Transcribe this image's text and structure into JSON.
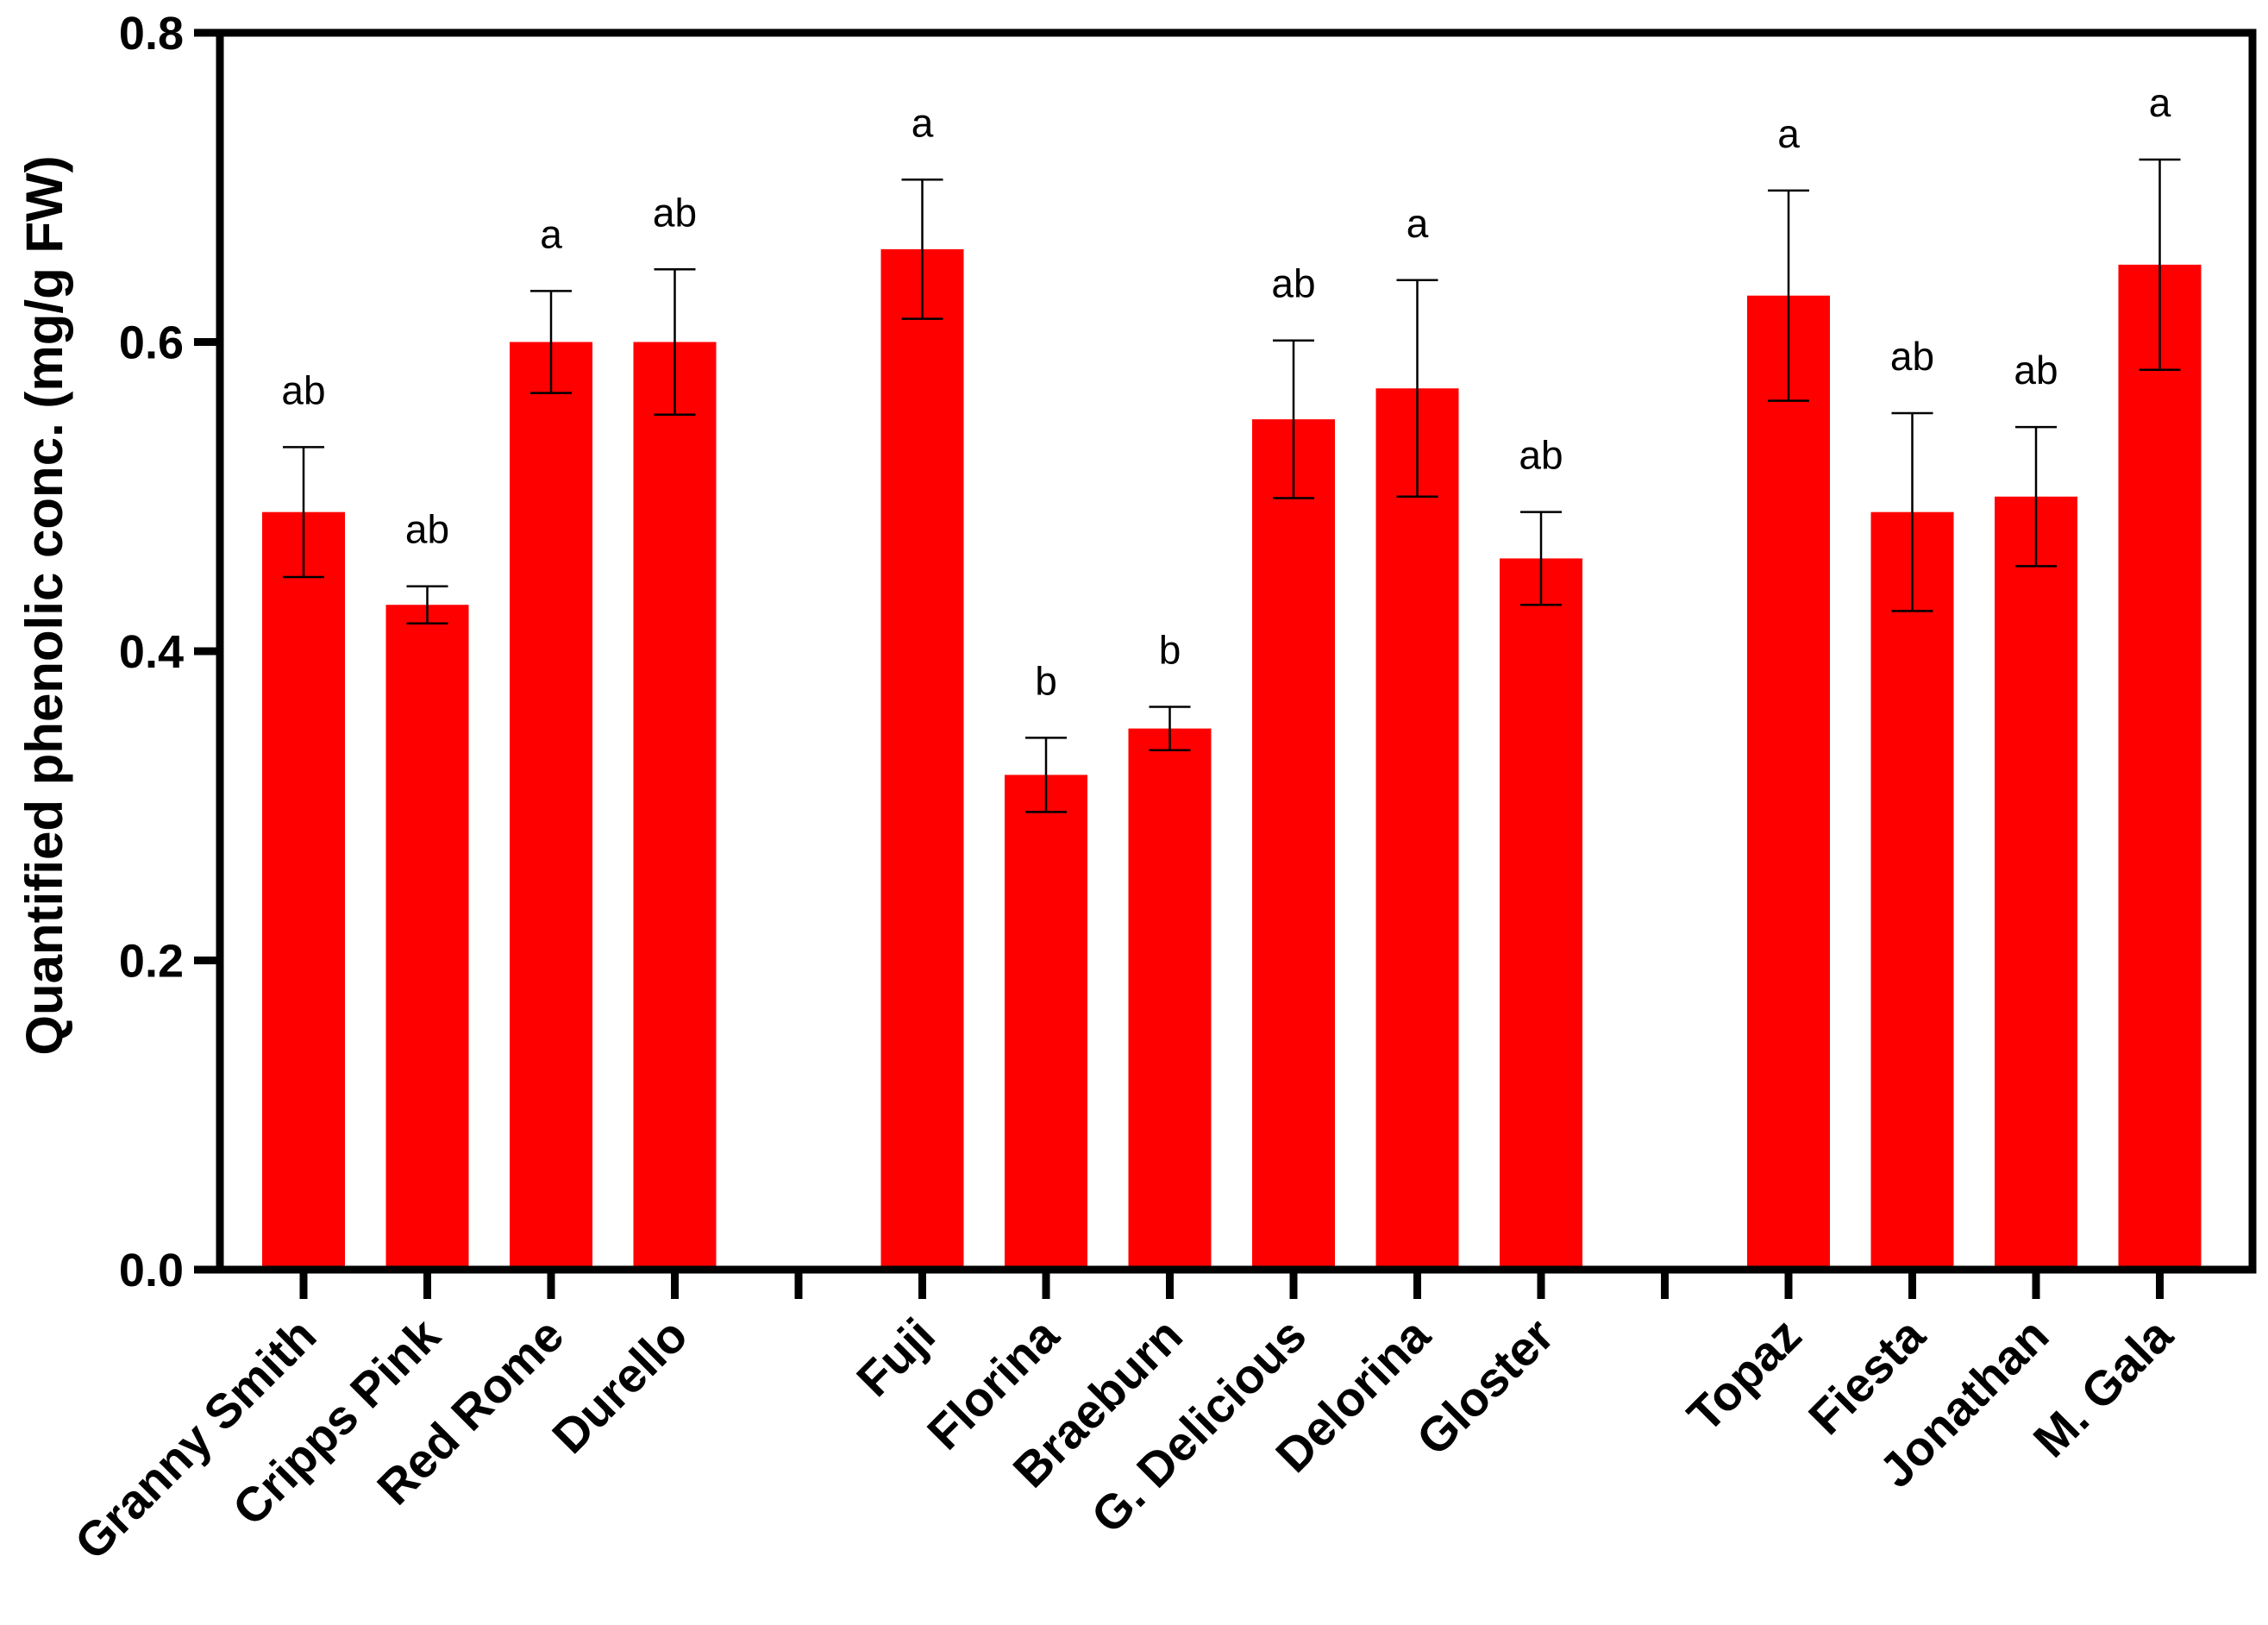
{
  "chart_data": {
    "type": "bar",
    "title": "",
    "xlabel": "",
    "ylabel": "Quantified phenolic conc. (mg/g FW)",
    "ylim": [
      0,
      0.8
    ],
    "yticks": [
      "0.0",
      "0.2",
      "0.4",
      "0.6",
      "0.8"
    ],
    "grid": false,
    "bar_color": "#ff0000",
    "groups": [
      {
        "categories": [
          "Granny Smith",
          "Cripps Pink",
          "Red Rome",
          "Durello"
        ]
      },
      {
        "categories": [
          "Fuji",
          "Florina",
          "Braeburn",
          "G. Delicious",
          "Delorina",
          "Gloster"
        ]
      },
      {
        "categories": [
          "Topaz",
          "Fiesta",
          "Jonathan",
          "M. Gala"
        ]
      }
    ],
    "categories": [
      "Granny Smith",
      "Cripps Pink",
      "Red Rome",
      "Durello",
      "Fuji",
      "Florina",
      "Braeburn",
      "G. Delicious",
      "Delorina",
      "Gloster",
      "Topaz",
      "Fiesta",
      "Jonathan",
      "M. Gala"
    ],
    "values": [
      0.49,
      0.43,
      0.6,
      0.6,
      0.66,
      0.32,
      0.35,
      0.55,
      0.57,
      0.46,
      0.63,
      0.49,
      0.5,
      0.65
    ],
    "errors": [
      0.042,
      0.012,
      0.033,
      0.047,
      0.045,
      0.024,
      0.014,
      0.051,
      0.07,
      0.03,
      0.068,
      0.064,
      0.045,
      0.068
    ],
    "significance": [
      "ab",
      "ab",
      "a",
      "ab",
      "a",
      "b",
      "b",
      "ab",
      "a",
      "ab",
      "a",
      "ab",
      "ab",
      "a"
    ]
  }
}
